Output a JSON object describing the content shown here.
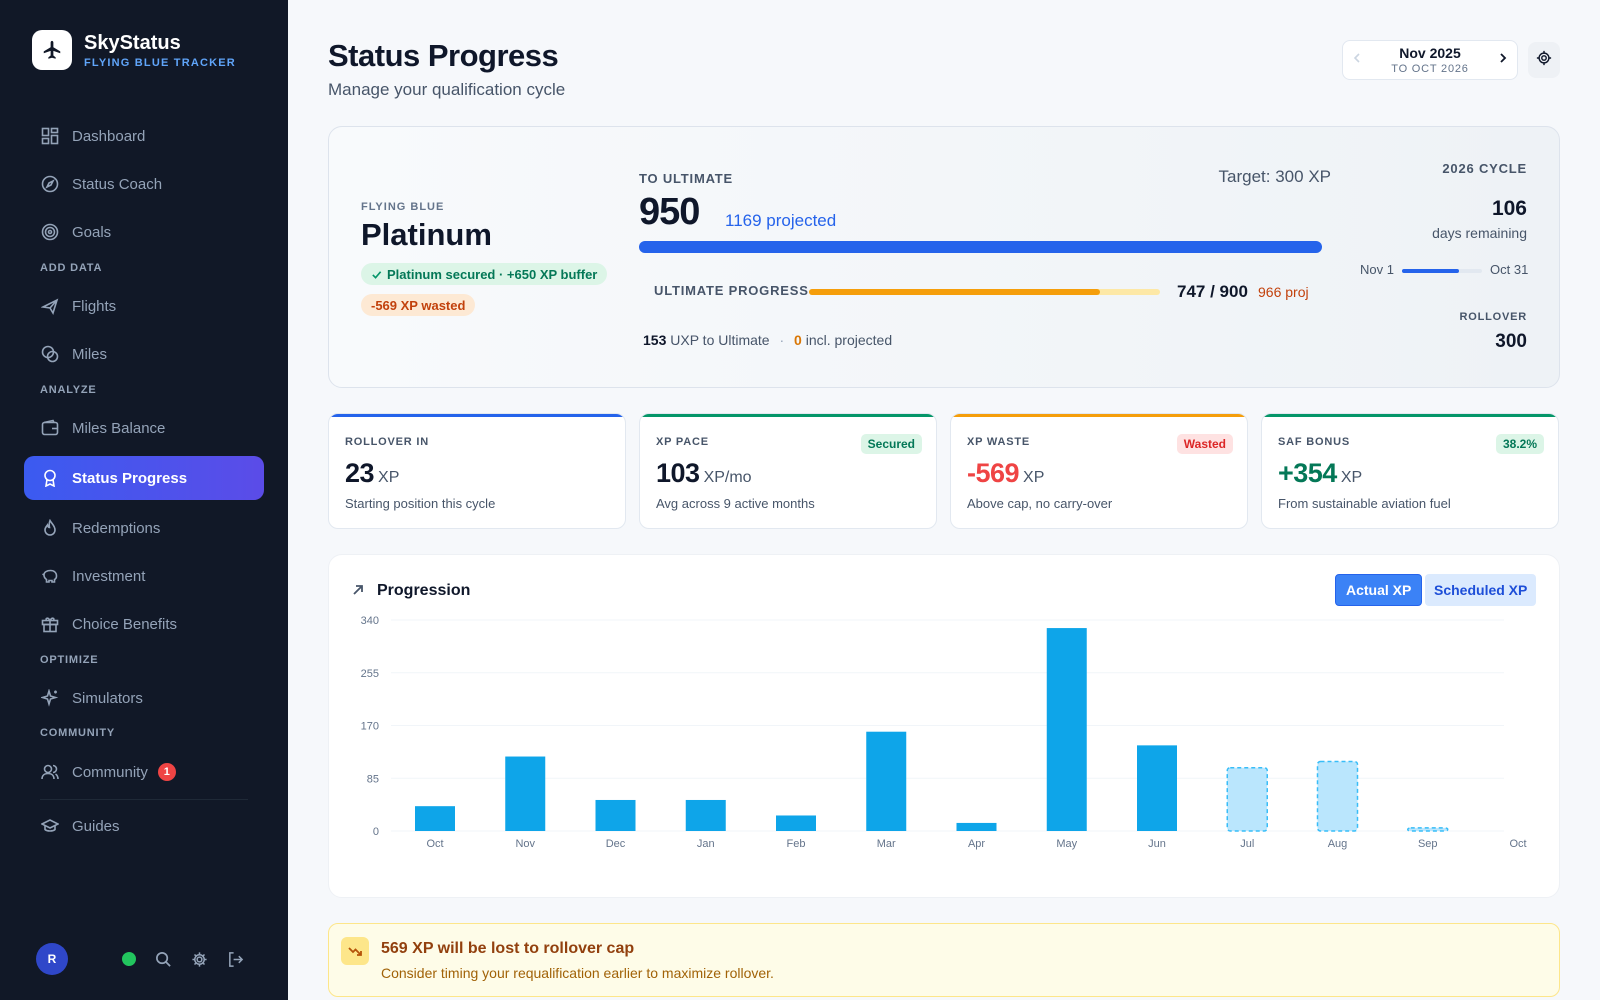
{
  "app": {
    "name": "SkyStatus",
    "subtitle": "FLYING BLUE TRACKER",
    "logo_icon": "plane-icon"
  },
  "sidebar": {
    "items": [
      {
        "label": "Dashboard",
        "icon": "grid-icon"
      },
      {
        "label": "Status Coach",
        "icon": "compass-icon"
      },
      {
        "label": "Goals",
        "icon": "target-icon"
      },
      {
        "label": "Flights",
        "icon": "plane-icon"
      },
      {
        "label": "Miles",
        "icon": "coins-icon"
      },
      {
        "label": "Miles Balance",
        "icon": "wallet-icon"
      },
      {
        "label": "Status Progress",
        "icon": "award-icon",
        "active": true
      },
      {
        "label": "Redemptions",
        "icon": "flame-icon"
      },
      {
        "label": "Investment",
        "icon": "piggy-bank-icon"
      },
      {
        "label": "Choice Benefits",
        "icon": "gift-icon"
      },
      {
        "label": "Simulators",
        "icon": "sparkles-icon"
      },
      {
        "label": "Community",
        "icon": "users-icon",
        "badge": "1"
      },
      {
        "label": "Guides",
        "icon": "graduation-cap-icon"
      }
    ],
    "sections": {
      "add_data": "ADD DATA",
      "analyze": "ANALYZE",
      "optimize": "OPTIMIZE",
      "community": "COMMUNITY"
    },
    "footer": {
      "avatar_initial": "R",
      "status": "online"
    }
  },
  "header": {
    "title": "Status Progress",
    "subtitle": "Manage your qualification cycle",
    "date_range": {
      "main": "Nov 2025",
      "sub": "TO OCT 2026"
    }
  },
  "hero": {
    "program": "FLYING BLUE",
    "tier": "Platinum",
    "secured_chip": "Platinum secured · +650 XP buffer",
    "wasted_chip": "-569 XP wasted",
    "to_label": "TO ULTIMATE",
    "target": "Target: 300 XP",
    "current_xp": "950",
    "projected": "1169 projected",
    "xp_progress": 1.0,
    "ultimate_label": "ULTIMATE PROGRESS",
    "ultimate_count": "747 / 900",
    "ultimate_projected": "966 proj",
    "ultimate_progress": 0.83,
    "uxp_needed": "153",
    "uxp_text": "UXP to Ultimate",
    "uxp_sep": "·",
    "incl_value": "0",
    "incl_text": "incl. projected",
    "cycle_label": "2026 CYCLE",
    "days_remaining": "106",
    "days_label": "days remaining",
    "cycle_start": "Nov 1",
    "cycle_end": "Oct 31",
    "cycle_progress": 0.71,
    "rollover_label": "ROLLOVER",
    "rollover_value": "300"
  },
  "stats": [
    {
      "label": "ROLLOVER IN",
      "value": "23",
      "unit": "XP",
      "desc": "Starting position this cycle",
      "badge": "",
      "accent": "#2563eb",
      "value_color": "#0f172a"
    },
    {
      "label": "XP PACE",
      "value": "103",
      "unit": "XP/mo",
      "desc": "Avg across 9 active months",
      "badge": "Secured",
      "accent": "#059669",
      "value_color": "#0f172a",
      "badge_bg": "#dcf5e7",
      "badge_color": "#047857"
    },
    {
      "label": "XP WASTE",
      "value": "-569",
      "unit": "XP",
      "desc": "Above cap, no carry-over",
      "badge": "Wasted",
      "accent": "#f59e0b",
      "value_color": "#ef4444",
      "badge_bg": "#fee2e2",
      "badge_color": "#dc2626"
    },
    {
      "label": "SAF BONUS",
      "value": "+354",
      "unit": "XP",
      "desc": "From sustainable aviation fuel",
      "badge": "38.2%",
      "accent": "#059669",
      "value_color": "#047857",
      "badge_bg": "#dcf5e7",
      "badge_color": "#047857"
    }
  ],
  "progression": {
    "title": "Progression",
    "icon": "arrow-up-right-icon",
    "toggle_actual": "Actual XP",
    "toggle_scheduled": "Scheduled XP"
  },
  "chart_data": {
    "type": "bar",
    "categories": [
      "Oct",
      "Nov",
      "Dec",
      "Jan",
      "Feb",
      "Mar",
      "Apr",
      "May",
      "Jun",
      "Jul",
      "Aug",
      "Sep",
      "Oct"
    ],
    "series": [
      {
        "name": "Actual XP",
        "values": [
          40,
          120,
          50,
          50,
          25,
          160,
          13,
          327,
          138,
          0,
          0,
          0,
          0
        ]
      },
      {
        "name": "Scheduled XP",
        "values": [
          0,
          0,
          0,
          0,
          0,
          0,
          0,
          0,
          0,
          102,
          112,
          5,
          0
        ]
      }
    ],
    "yticks": [
      "0",
      "85",
      "170",
      "255",
      "340"
    ],
    "ylim": [
      0,
      340
    ],
    "grid": true,
    "colors": {
      "actual": "#0ea5e9",
      "scheduled_fill": "#bae6fd",
      "scheduled_stroke": "#38bdf8"
    }
  },
  "alert": {
    "icon": "trending-down-icon",
    "title": "569 XP will be lost to rollover cap",
    "text": "Consider timing your requalification earlier to maximize rollover."
  }
}
